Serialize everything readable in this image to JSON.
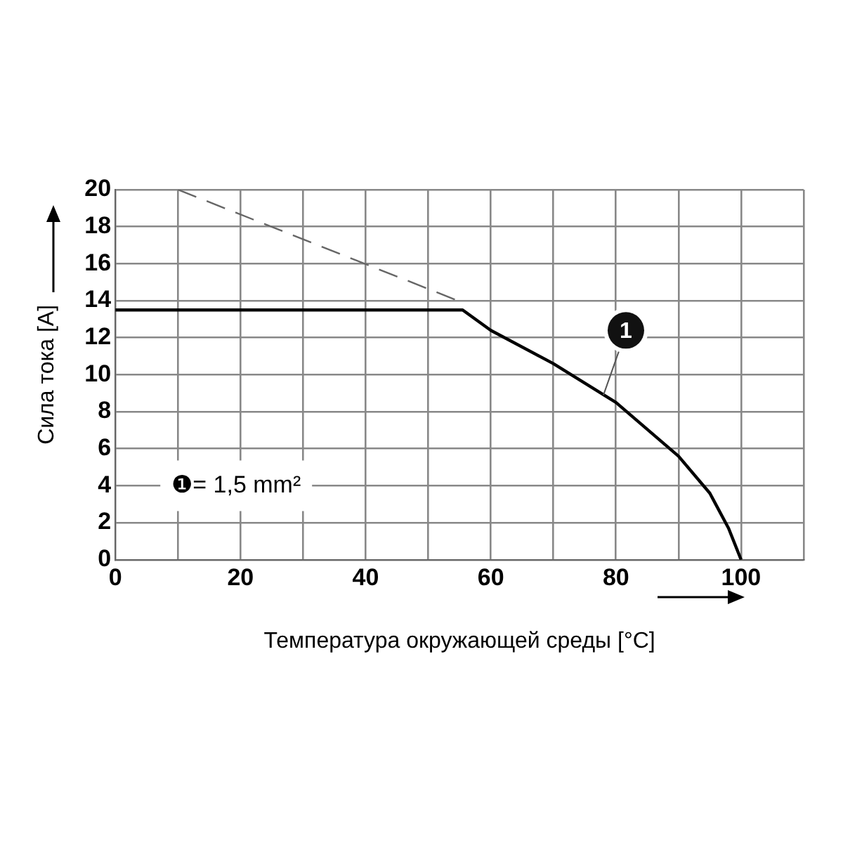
{
  "chart_data": {
    "type": "line",
    "xlabel": "Температура окружающей среды [°C]",
    "ylabel": "Сила тока [A]",
    "xlim": [
      0,
      110
    ],
    "xticks": [
      0,
      {
        "value": 10,
        "label": null
      },
      20,
      {
        "value": 30,
        "label": null
      },
      40,
      {
        "value": 50,
        "label": null
      },
      60,
      {
        "value": 70,
        "label": null
      },
      80,
      {
        "value": 90,
        "label": null
      },
      100,
      {
        "value": 110,
        "label": null
      }
    ],
    "ylim": [
      0,
      20
    ],
    "yticks": [
      0,
      2,
      4,
      6,
      8,
      10,
      12,
      14,
      16,
      18,
      20
    ],
    "grid": true,
    "legend": false,
    "marker": "none",
    "series": [
      {
        "color": "#000000",
        "line_style": "solid",
        "x": [
          0,
          55.5,
          60,
          70,
          80,
          90,
          95,
          98,
          100
        ],
        "values": [
          13.5,
          13.5,
          12.4,
          10.6,
          8.5,
          5.6,
          3.6,
          1.7,
          0
        ]
      },
      {
        "color": "#666666",
        "line_style": "dashed",
        "x": [
          10,
          55.5
        ],
        "values": [
          20,
          13.9
        ]
      }
    ],
    "annotations": [
      {
        "text": "1",
        "x": 78,
        "y": 8.9
      },
      "❶= 1,5 mm²"
    ]
  }
}
